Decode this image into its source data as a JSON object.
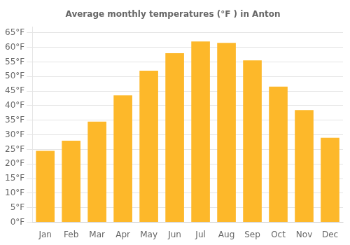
{
  "chart_data": {
    "type": "bar",
    "title": "Average monthly temperatures (°F ) in Anton",
    "categories": [
      "Jan",
      "Feb",
      "Mar",
      "Apr",
      "May",
      "Jun",
      "Jul",
      "Aug",
      "Sep",
      "Oct",
      "Nov",
      "Dec"
    ],
    "values": [
      24.5,
      28.0,
      34.5,
      43.5,
      52.0,
      58.0,
      62.0,
      61.5,
      55.5,
      46.5,
      38.5,
      29.0
    ],
    "color": "#FDB82A",
    "ylim": [
      0,
      67
    ],
    "yticks": [
      {
        "value": 0,
        "label": "0°F"
      },
      {
        "value": 5,
        "label": "5°F"
      },
      {
        "value": 10,
        "label": "10°F"
      },
      {
        "value": 15,
        "label": "15°F"
      },
      {
        "value": 20,
        "label": "20°F"
      },
      {
        "value": 25,
        "label": "25°F"
      },
      {
        "value": 30,
        "label": "30°F"
      },
      {
        "value": 35,
        "label": "35°F"
      },
      {
        "value": 40,
        "label": "40°F"
      },
      {
        "value": 45,
        "label": "45°F"
      },
      {
        "value": 50,
        "label": "50°F"
      },
      {
        "value": 55,
        "label": "55°F"
      },
      {
        "value": 60,
        "label": "60°F"
      },
      {
        "value": 65,
        "label": "65°F"
      }
    ],
    "grid": true
  }
}
